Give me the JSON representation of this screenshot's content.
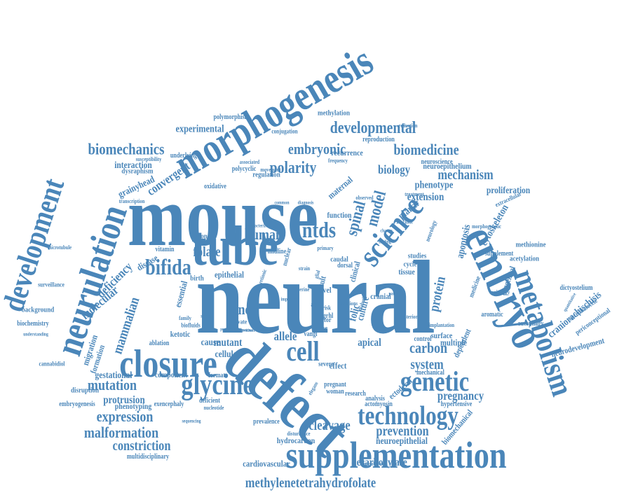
{
  "color": "#4a86b9",
  "words": [
    "neural",
    "mouse",
    "defect",
    "tube",
    "morphogenesis",
    "embryo",
    "metabolism",
    "development",
    "neurulation",
    "closure",
    "supplementation",
    "science",
    "genetic",
    "glycine",
    "technology",
    "cell",
    "developmental",
    "embryonic",
    "biomechanics",
    "biomedicine",
    "polarity",
    "biology",
    "mechanism",
    "spinal",
    "model",
    "ntds",
    "human",
    "folate",
    "bifida",
    "gene",
    "mutation",
    "expression",
    "malformation",
    "methylenetetrahydrofolate",
    "carbon",
    "system",
    "pregnancy",
    "protein",
    "apoptosis",
    "cytoskeleton",
    "proliferation",
    "phenotype",
    "extension",
    "maternal",
    "planar",
    "cleavage",
    "prevention",
    "constriction",
    "mammalian",
    "molecular",
    "deficiency",
    "convergent",
    "grainyhead",
    "interaction",
    "experimental",
    "mutant",
    "apical",
    "decarboxylase",
    "neuroepithelial",
    "hydrocarbon",
    "protrusion",
    "gestational",
    "component",
    "phenotyping",
    "cause",
    "tissue",
    "culture",
    "folic",
    "ectoderm",
    "craniorachischisis",
    "neurodevelopment",
    "encephalocele",
    "periconceptional",
    "congenital",
    "dictyostelium",
    "methionine",
    "acetylation",
    "supplement",
    "autophagy",
    "methylation",
    "polymorphism",
    "conjugation",
    "reproduction",
    "neuroepithelium",
    "neuroscience",
    "recurrence",
    "regulation",
    "polycyclic",
    "associated",
    "frequency",
    "movement",
    "susceptibility",
    "underlying",
    "dysraphism",
    "transcription",
    "oxidative",
    "function",
    "midline",
    "epithelial",
    "vitamin",
    "disease",
    "fusion",
    "essential",
    "birth",
    "migration",
    "formation",
    "disruption",
    "embryogenesis",
    "exencephaly",
    "background",
    "biochemistry",
    "understanding",
    "surveillance",
    "microtubule",
    "cannabidiol",
    "ablation",
    "ketotic",
    "cellular",
    "formate",
    "deficient",
    "nucleotide",
    "prevalence",
    "multidisciplinary",
    "cardiovascular",
    "sequencing",
    "accumulation",
    "disturbance",
    "pregnant",
    "woman",
    "effect",
    "severe",
    "elegans",
    "research",
    "analysis",
    "actomyosin",
    "hypertensive",
    "mechanical",
    "biomechanical",
    "dependent",
    "multiple",
    "surface",
    "control",
    "aromatic",
    "toxicology",
    "medicine",
    "studies",
    "cycle",
    "morphogenetic",
    "extracellular",
    "quantitative",
    "reduction",
    "knockout",
    "treatment",
    "caudal",
    "clinical",
    "nuclear",
    "result",
    "level",
    "risk",
    "grhl",
    "actin",
    "kinase",
    "factor",
    "vangl",
    "allele",
    "strain",
    "mutations",
    "important",
    "properties",
    "abnormal",
    "biofluids",
    "family",
    "stress",
    "dorsal",
    "pyruvate",
    "cranial",
    "serine",
    "diabetic",
    "posterior",
    "implantation",
    "evidence",
    "primary",
    "glial",
    "observed",
    "common",
    "diagnosis",
    "characterize",
    "pathway",
    "finding",
    "change",
    "neurology",
    "retinoic"
  ]
}
